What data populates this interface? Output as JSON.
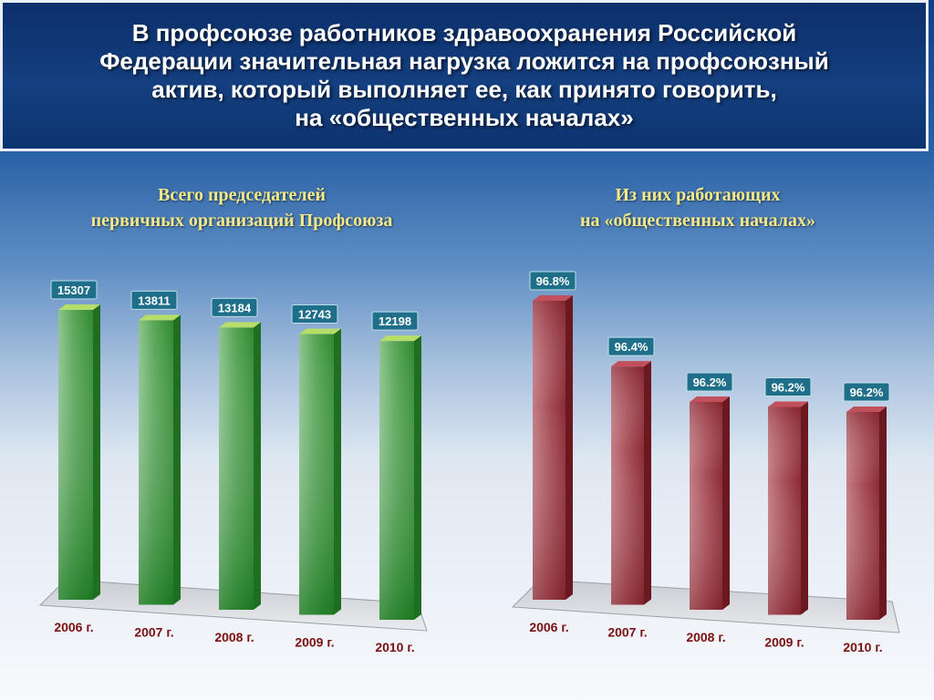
{
  "header": {
    "title": "В профсоюзе работников здравоохранения Российской\nФедерации значительная нагрузка ложится на профсоюзный\nактив, который выполняет ее, как принято говорить,\nна «общественных началах»"
  },
  "colors": {
    "left_series": "#3d9a3d",
    "right_series": "#9a3640",
    "label_bg": "#1f6f8a",
    "category_text": "#7a1010"
  },
  "chart_data": [
    {
      "type": "bar",
      "title": "Всего председателей\nпервичных организаций Профсоюза",
      "categories": [
        "2006 г.",
        "2007 г.",
        "2008 г.",
        "2009 г.",
        "2010 г."
      ],
      "values": [
        15307,
        13811,
        13184,
        12743,
        12198
      ],
      "value_labels": [
        "15307",
        "13811",
        "13184",
        "12743",
        "12198"
      ],
      "ylim": [
        0,
        15307
      ],
      "grid": false,
      "legend": "none"
    },
    {
      "type": "bar",
      "title": "Из них работающих\nна «общественных началах»",
      "categories": [
        "2006 г.",
        "2007 г.",
        "2008 г.",
        "2009 г.",
        "2010 г."
      ],
      "values": [
        96.8,
        96.4,
        96.2,
        96.2,
        96.2
      ],
      "value_labels": [
        "96.8%",
        "96.4%",
        "96.2%",
        "96.2%",
        "96.2%"
      ],
      "ylim": [
        95.6,
        96.8
      ],
      "grid": false,
      "legend": "none"
    }
  ]
}
